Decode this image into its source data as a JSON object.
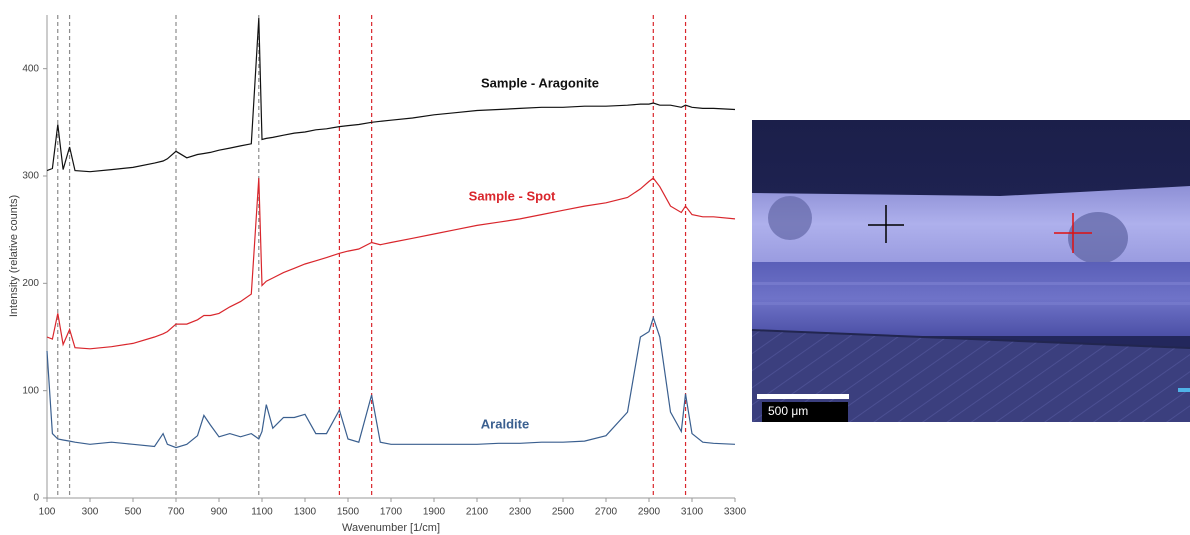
{
  "chart_data": {
    "type": "line",
    "y_label": "Intensity (relative counts)",
    "x_label": "Wavenumber [1/cm]",
    "xlim": [
      100,
      3300
    ],
    "xticks": [
      100,
      300,
      500,
      700,
      900,
      1100,
      1300,
      1500,
      1700,
      1900,
      2100,
      2300,
      2500,
      2700,
      2900,
      3100,
      3300
    ],
    "ylim": [
      0,
      450
    ],
    "yticks": [
      0,
      100,
      200,
      300,
      400
    ],
    "x": [
      100,
      125,
      150,
      175,
      205,
      230,
      300,
      400,
      500,
      600,
      640,
      660,
      700,
      750,
      800,
      830,
      860,
      900,
      950,
      1000,
      1050,
      1085,
      1100,
      1120,
      1150,
      1200,
      1250,
      1300,
      1350,
      1400,
      1460,
      1500,
      1550,
      1610,
      1650,
      1700,
      1800,
      1900,
      2000,
      2100,
      2200,
      2300,
      2400,
      2500,
      2600,
      2700,
      2800,
      2860,
      2900,
      2920,
      2950,
      3000,
      3050,
      3070,
      3100,
      3150,
      3200,
      3300
    ],
    "series": [
      {
        "name": "Sample - Aragonite",
        "color": "#111111",
        "values": [
          305,
          307,
          348,
          306,
          327,
          305,
          304,
          306,
          308,
          312,
          314,
          316,
          323,
          317,
          320,
          321,
          322,
          324,
          326,
          328,
          330,
          447,
          334,
          335,
          336,
          338,
          340,
          341,
          343,
          344,
          346,
          347,
          348,
          350,
          351,
          352,
          354,
          357,
          359,
          361,
          362,
          363,
          364,
          364,
          365,
          365,
          366,
          367,
          367,
          368,
          366,
          366,
          364,
          366,
          364,
          363,
          363,
          362
        ]
      },
      {
        "name": "Sample - Spot",
        "color": "#d9262c",
        "values": [
          150,
          148,
          172,
          143,
          157,
          140,
          139,
          141,
          144,
          150,
          153,
          155,
          162,
          162,
          166,
          170,
          170,
          172,
          178,
          183,
          190,
          298,
          198,
          202,
          205,
          210,
          214,
          218,
          221,
          224,
          228,
          230,
          232,
          238,
          236,
          238,
          242,
          246,
          250,
          254,
          257,
          260,
          264,
          268,
          272,
          275,
          280,
          288,
          295,
          298,
          290,
          272,
          266,
          272,
          264,
          262,
          262,
          260
        ]
      },
      {
        "name": "Araldite",
        "color": "#3a5f8f",
        "values": [
          137,
          60,
          55,
          54,
          53,
          52,
          50,
          52,
          50,
          48,
          60,
          50,
          47,
          50,
          58,
          77,
          68,
          57,
          60,
          57,
          60,
          55,
          62,
          87,
          65,
          75,
          75,
          78,
          60,
          60,
          82,
          55,
          52,
          96,
          52,
          50,
          50,
          50,
          50,
          50,
          51,
          51,
          52,
          52,
          53,
          58,
          80,
          150,
          155,
          168,
          150,
          80,
          62,
          97,
          60,
          52,
          51,
          50
        ]
      }
    ],
    "reference_lines": [
      {
        "x": 150,
        "color": "#8c8c8c"
      },
      {
        "x": 205,
        "color": "#8c8c8c"
      },
      {
        "x": 700,
        "color": "#8c8c8c"
      },
      {
        "x": 1085,
        "color": "#8c8c8c"
      },
      {
        "x": 1460,
        "color": "#d9262c"
      },
      {
        "x": 1610,
        "color": "#d9262c"
      },
      {
        "x": 2920,
        "color": "#d9262c"
      },
      {
        "x": 3070,
        "color": "#d9262c"
      }
    ]
  },
  "micrograph": {
    "scale_bar_label": "500 μm"
  }
}
